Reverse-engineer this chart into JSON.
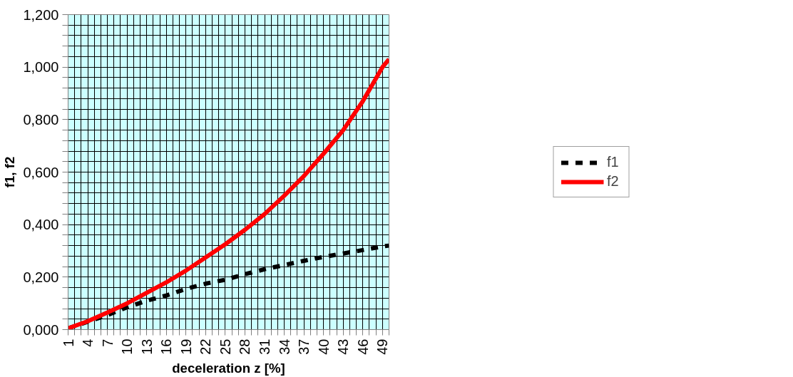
{
  "chart_data": {
    "type": "line",
    "xlabel": "deceleration z [%]",
    "ylabel": "f1, f2",
    "x": [
      1,
      4,
      7,
      10,
      13,
      16,
      19,
      22,
      25,
      28,
      31,
      34,
      37,
      40,
      43,
      46,
      49,
      50
    ],
    "series": [
      {
        "name": "f1",
        "color": "#000000",
        "line_style": "dashed",
        "values": [
          0.005,
          0.03,
          0.055,
          0.085,
          0.11,
          0.13,
          0.155,
          0.175,
          0.19,
          0.211,
          0.23,
          0.246,
          0.262,
          0.277,
          0.29,
          0.303,
          0.317,
          0.32
        ]
      },
      {
        "name": "f2",
        "color": "#ff0000",
        "line_style": "solid",
        "values": [
          0.005,
          0.032,
          0.065,
          0.1,
          0.14,
          0.18,
          0.225,
          0.275,
          0.325,
          0.38,
          0.44,
          0.51,
          0.585,
          0.67,
          0.76,
          0.87,
          1.0,
          1.03
        ]
      }
    ],
    "xlim": [
      1,
      50
    ],
    "xticks": [
      1,
      {
        "value": 2,
        "label": null
      },
      {
        "value": 3,
        "label": null
      },
      4,
      {
        "value": 5,
        "label": null
      },
      {
        "value": 6,
        "label": null
      },
      7,
      {
        "value": 8,
        "label": null
      },
      {
        "value": 9,
        "label": null
      },
      10,
      {
        "value": 11,
        "label": null
      },
      {
        "value": 12,
        "label": null
      },
      13,
      {
        "value": 14,
        "label": null
      },
      {
        "value": 15,
        "label": null
      },
      16,
      {
        "value": 17,
        "label": null
      },
      {
        "value": 18,
        "label": null
      },
      19,
      {
        "value": 20,
        "label": null
      },
      {
        "value": 21,
        "label": null
      },
      22,
      {
        "value": 23,
        "label": null
      },
      {
        "value": 24,
        "label": null
      },
      25,
      {
        "value": 26,
        "label": null
      },
      {
        "value": 27,
        "label": null
      },
      28,
      {
        "value": 29,
        "label": null
      },
      {
        "value": 30,
        "label": null
      },
      31,
      {
        "value": 32,
        "label": null
      },
      {
        "value": 33,
        "label": null
      },
      34,
      {
        "value": 35,
        "label": null
      },
      {
        "value": 36,
        "label": null
      },
      37,
      {
        "value": 38,
        "label": null
      },
      {
        "value": 39,
        "label": null
      },
      40,
      {
        "value": 41,
        "label": null
      },
      {
        "value": 42,
        "label": null
      },
      43,
      {
        "value": 44,
        "label": null
      },
      {
        "value": 45,
        "label": null
      },
      46,
      {
        "value": 47,
        "label": null
      },
      {
        "value": 48,
        "label": null
      },
      49,
      {
        "value": 50,
        "label": null
      }
    ],
    "ylim": [
      0,
      1.2
    ],
    "yticks": [
      {
        "value": 0,
        "label": "0,000"
      },
      {
        "value": 0.04,
        "label": null
      },
      {
        "value": 0.08,
        "label": null
      },
      {
        "value": 0.12,
        "label": null
      },
      {
        "value": 0.16,
        "label": null
      },
      {
        "value": 0.2,
        "label": "0,200"
      },
      {
        "value": 0.24,
        "label": null
      },
      {
        "value": 0.28,
        "label": null
      },
      {
        "value": 0.32,
        "label": null
      },
      {
        "value": 0.36,
        "label": null
      },
      {
        "value": 0.4,
        "label": "0,400"
      },
      {
        "value": 0.44,
        "label": null
      },
      {
        "value": 0.48,
        "label": null
      },
      {
        "value": 0.52,
        "label": null
      },
      {
        "value": 0.56,
        "label": null
      },
      {
        "value": 0.6,
        "label": "0,600"
      },
      {
        "value": 0.64,
        "label": null
      },
      {
        "value": 0.68,
        "label": null
      },
      {
        "value": 0.72,
        "label": null
      },
      {
        "value": 0.76,
        "label": null
      },
      {
        "value": 0.8,
        "label": "0,800"
      },
      {
        "value": 0.84,
        "label": null
      },
      {
        "value": 0.88,
        "label": null
      },
      {
        "value": 0.92,
        "label": null
      },
      {
        "value": 0.96,
        "label": null
      },
      {
        "value": 1.0,
        "label": "1,000"
      },
      {
        "value": 1.04,
        "label": null
      },
      {
        "value": 1.08,
        "label": null
      },
      {
        "value": 1.12,
        "label": null
      },
      {
        "value": 1.16,
        "label": null
      },
      {
        "value": 1.2,
        "label": "1,200"
      }
    ],
    "grid": true,
    "legend": "right"
  }
}
